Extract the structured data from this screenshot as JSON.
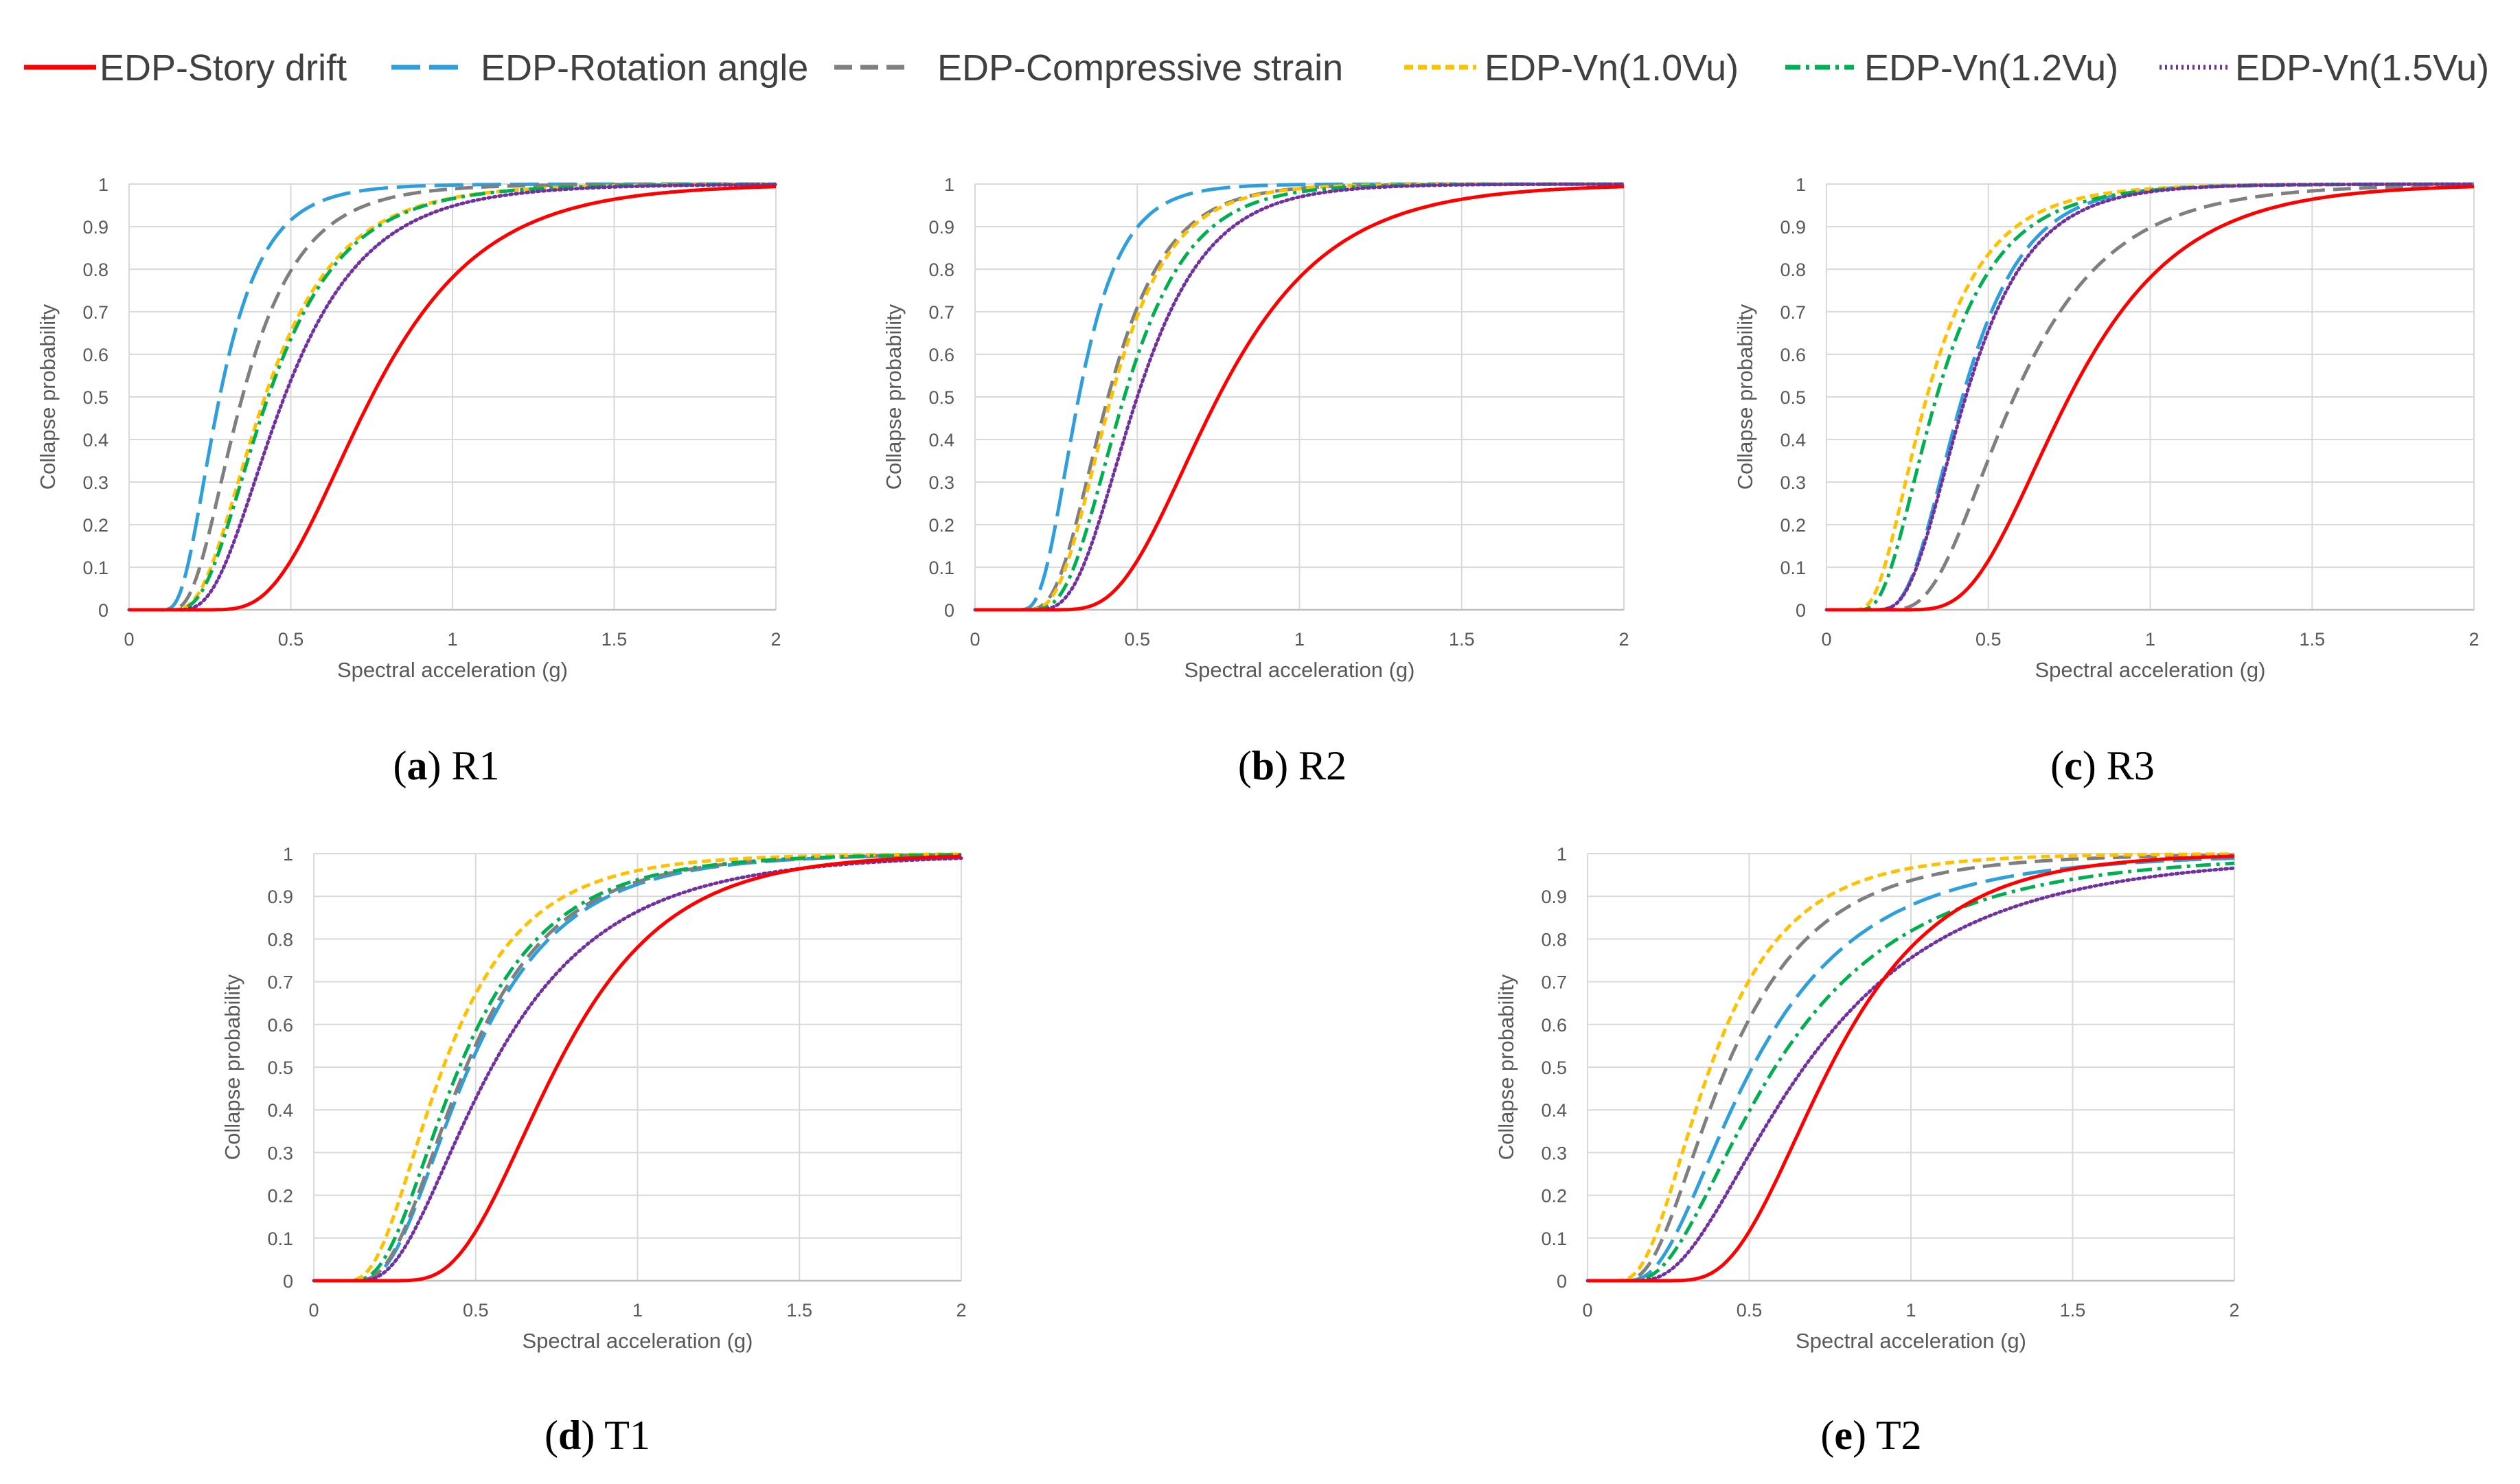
{
  "legend": [
    {
      "key": "story",
      "label": "EDP-Story drift"
    },
    {
      "key": "rotation",
      "label": "EDP-Rotation angle"
    },
    {
      "key": "strain",
      "label": "EDP-Compressive strain"
    },
    {
      "key": "vn10",
      "label": "EDP-Vn(1.0Vu)"
    },
    {
      "key": "vn12",
      "label": "EDP-Vn(1.2Vu)"
    },
    {
      "key": "vn15",
      "label": "EDP-Vn(1.5Vu)"
    }
  ],
  "series_style": {
    "story": {
      "color": "#FF0000",
      "dash": ""
    },
    "rotation": {
      "color": "#2E9FDB",
      "dash": "42,13"
    },
    "strain": {
      "color": "#7F7F7F",
      "dash": "26,12"
    },
    "vn10": {
      "color": "#FFC000",
      "dash": "13,7"
    },
    "vn12": {
      "color": "#00B050",
      "dash": "22,8,5,8"
    },
    "vn15": {
      "color": "#7030A0",
      "dash": "3,5"
    }
  },
  "chart_data": [
    {
      "type": "line",
      "panel_letter": "a",
      "panel_name": "R1",
      "xlabel": "Spectral acceleration (g)",
      "ylabel": "Collapse probability",
      "xlim": [
        0,
        2
      ],
      "ylim": [
        0,
        1
      ],
      "xticks": [
        "0",
        "0.5",
        "1",
        "1.5",
        "2"
      ],
      "yticks": [
        "0",
        "0.1",
        "0.2",
        "0.3",
        "0.4",
        "0.5",
        "0.6",
        "0.7",
        "0.8",
        "0.9",
        "1"
      ],
      "series": [
        {
          "key": "story",
          "median": 0.75,
          "beta": 0.45,
          "shift": 0.15
        },
        {
          "key": "rotation",
          "median": 0.28,
          "beta": 0.54,
          "shift": 0.08
        },
        {
          "key": "strain",
          "median": 0.35,
          "beta": 0.55,
          "shift": 0.09
        },
        {
          "key": "vn10",
          "median": 0.42,
          "beta": 0.55,
          "shift": 0.09
        },
        {
          "key": "vn12",
          "median": 0.43,
          "beta": 0.54,
          "shift": 0.09
        },
        {
          "key": "vn15",
          "median": 0.48,
          "beta": 0.53,
          "shift": 0.1
        }
      ]
    },
    {
      "type": "line",
      "panel_letter": "b",
      "panel_name": "R2",
      "xlabel": "Spectral acceleration (g)",
      "ylabel": "Collapse probability",
      "xlim": [
        0,
        2
      ],
      "ylim": [
        0,
        1
      ],
      "xticks": [
        "0",
        "0.5",
        "1",
        "1.5",
        "2"
      ],
      "yticks": [
        "0",
        "0.1",
        "0.2",
        "0.3",
        "0.4",
        "0.5",
        "0.6",
        "0.7",
        "0.8",
        "0.9",
        "1"
      ],
      "series": [
        {
          "key": "story",
          "median": 0.75,
          "beta": 0.45,
          "shift": 0.15
        },
        {
          "key": "rotation",
          "median": 0.32,
          "beta": 0.47,
          "shift": 0.1
        },
        {
          "key": "strain",
          "median": 0.41,
          "beta": 0.46,
          "shift": 0.1
        },
        {
          "key": "vn10",
          "median": 0.42,
          "beta": 0.45,
          "shift": 0.1
        },
        {
          "key": "vn12",
          "median": 0.46,
          "beta": 0.44,
          "shift": 0.1
        },
        {
          "key": "vn15",
          "median": 0.5,
          "beta": 0.44,
          "shift": 0.11
        }
      ]
    },
    {
      "type": "line",
      "panel_letter": "c",
      "panel_name": "R3",
      "xlabel": "Spectral acceleration (g)",
      "ylabel": "Collapse probability",
      "xlim": [
        0,
        2
      ],
      "ylim": [
        0,
        1
      ],
      "xticks": [
        "0",
        "0.5",
        "1",
        "1.5",
        "2"
      ],
      "yticks": [
        "0",
        "0.1",
        "0.2",
        "0.3",
        "0.4",
        "0.5",
        "0.6",
        "0.7",
        "0.8",
        "0.9",
        "1"
      ],
      "series": [
        {
          "key": "story",
          "median": 0.75,
          "beta": 0.45,
          "shift": 0.15
        },
        {
          "key": "rotation",
          "median": 0.42,
          "beta": 0.47,
          "shift": 0.1
        },
        {
          "key": "strain",
          "median": 0.58,
          "beta": 0.52,
          "shift": 0.13
        },
        {
          "key": "vn10",
          "median": 0.31,
          "beta": 0.58,
          "shift": 0.06
        },
        {
          "key": "vn12",
          "median": 0.34,
          "beta": 0.57,
          "shift": 0.07
        },
        {
          "key": "vn15",
          "median": 0.43,
          "beta": 0.48,
          "shift": 0.1
        }
      ]
    },
    {
      "type": "line",
      "panel_letter": "d",
      "panel_name": "T1",
      "xlabel": "Spectral acceleration (g)",
      "ylabel": "Collapse probability",
      "xlim": [
        0,
        2
      ],
      "ylim": [
        0,
        1
      ],
      "xticks": [
        "0",
        "0.5",
        "1",
        "1.5",
        "2"
      ],
      "yticks": [
        "0",
        "0.1",
        "0.2",
        "0.3",
        "0.4",
        "0.5",
        "0.6",
        "0.7",
        "0.8",
        "0.9",
        "1"
      ],
      "series": [
        {
          "key": "story",
          "median": 0.75,
          "beta": 0.45,
          "shift": 0.15
        },
        {
          "key": "rotation",
          "median": 0.48,
          "beta": 0.57,
          "shift": 0.08
        },
        {
          "key": "strain",
          "median": 0.47,
          "beta": 0.57,
          "shift": 0.08
        },
        {
          "key": "vn10",
          "median": 0.4,
          "beta": 0.58,
          "shift": 0.06
        },
        {
          "key": "vn12",
          "median": 0.45,
          "beta": 0.58,
          "shift": 0.07
        },
        {
          "key": "vn15",
          "median": 0.55,
          "beta": 0.62,
          "shift": 0.09
        }
      ]
    },
    {
      "type": "line",
      "panel_letter": "e",
      "panel_name": "T2",
      "xlabel": "Spectral acceleration (g)",
      "ylabel": "Collapse probability",
      "xlim": [
        0,
        2
      ],
      "ylim": [
        0,
        1
      ],
      "xticks": [
        "0",
        "0.5",
        "1",
        "1.5",
        "2"
      ],
      "yticks": [
        "0",
        "0.1",
        "0.2",
        "0.3",
        "0.4",
        "0.5",
        "0.6",
        "0.7",
        "0.8",
        "0.9",
        "1"
      ],
      "series": [
        {
          "key": "story",
          "median": 0.75,
          "beta": 0.45,
          "shift": 0.15
        },
        {
          "key": "rotation",
          "median": 0.51,
          "beta": 0.65,
          "shift": 0.08
        },
        {
          "key": "strain",
          "median": 0.43,
          "beta": 0.62,
          "shift": 0.07
        },
        {
          "key": "vn10",
          "median": 0.38,
          "beta": 0.58,
          "shift": 0.05
        },
        {
          "key": "vn12",
          "median": 0.58,
          "beta": 0.68,
          "shift": 0.09
        },
        {
          "key": "vn15",
          "median": 0.67,
          "beta": 0.66,
          "shift": 0.1
        }
      ]
    }
  ]
}
